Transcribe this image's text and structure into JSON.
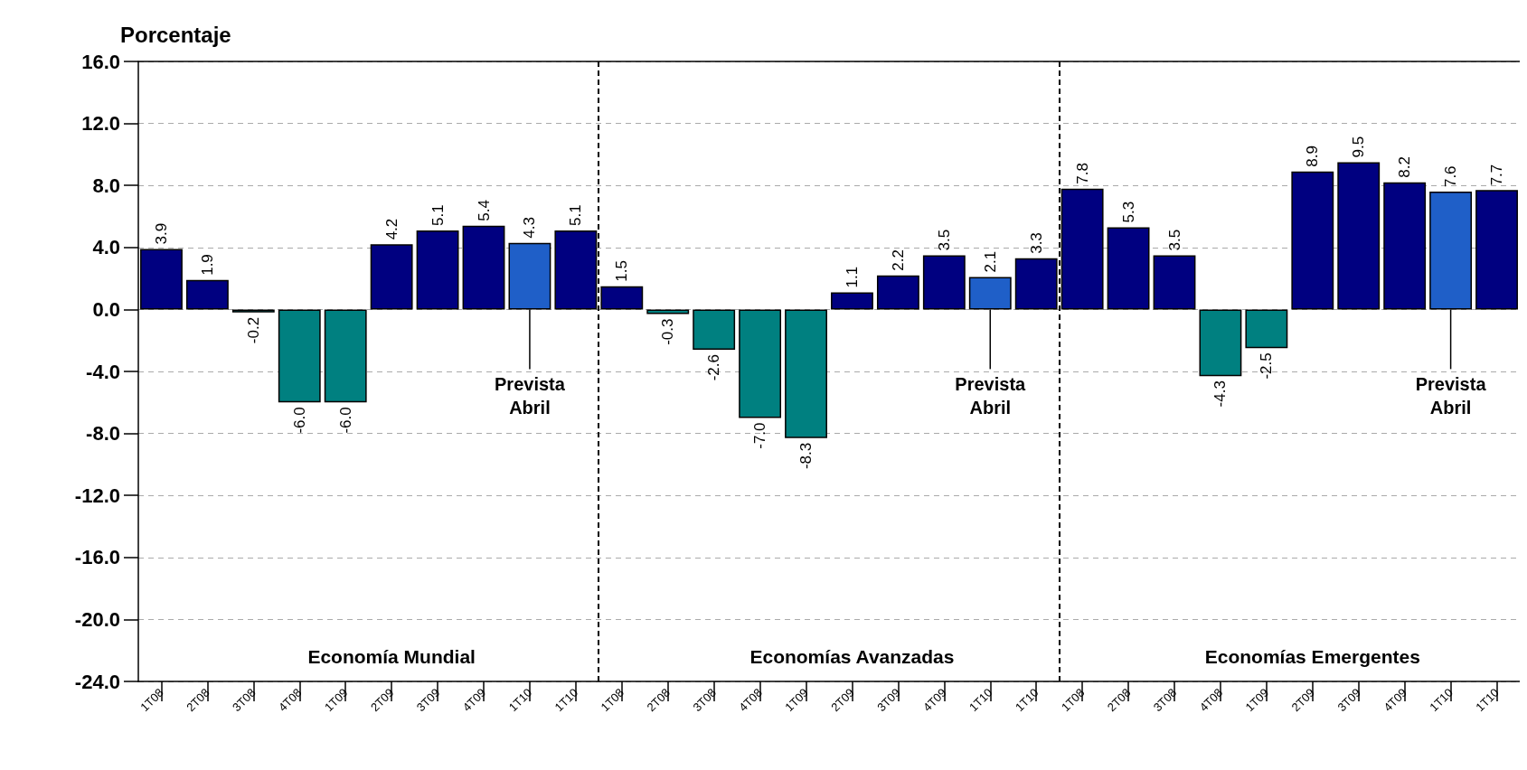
{
  "chart_data": {
    "type": "bar",
    "ylabel": "Porcentaje",
    "categories": [
      "1T08",
      "2T08",
      "3T08",
      "4T08",
      "1T09",
      "2T09",
      "3T09",
      "4T09",
      "1T10",
      "1T10",
      "1T08",
      "2T08",
      "3T08",
      "4T08",
      "1T09",
      "2T09",
      "3T09",
      "4T09",
      "1T10",
      "1T10",
      "1T08",
      "2T08",
      "3T08",
      "4T08",
      "1T09",
      "2T09",
      "3T09",
      "4T09",
      "1T10",
      "1T10"
    ],
    "values": [
      3.9,
      1.9,
      -0.2,
      -6.0,
      -6.0,
      4.2,
      5.1,
      5.4,
      4.3,
      5.1,
      1.5,
      -0.3,
      -2.6,
      -7.0,
      -8.3,
      1.1,
      2.2,
      3.5,
      2.1,
      3.3,
      7.8,
      5.3,
      3.5,
      -4.3,
      -2.5,
      8.9,
      9.5,
      8.2,
      7.6,
      7.7
    ],
    "colors": [
      "#000080",
      "#000080",
      "#008080",
      "#008080",
      "#008080",
      "#000080",
      "#000080",
      "#000080",
      "#1f5fc8",
      "#000080",
      "#000080",
      "#008080",
      "#008080",
      "#008080",
      "#008080",
      "#000080",
      "#000080",
      "#000080",
      "#1f5fc8",
      "#000080",
      "#000080",
      "#000080",
      "#000080",
      "#008080",
      "#008080",
      "#000080",
      "#000080",
      "#000080",
      "#1f5fc8",
      "#000080"
    ],
    "value_labels": [
      "3.9",
      "1.9",
      "-0.2",
      "-6.0",
      "-6.0",
      "4.2",
      "5.1",
      "5.4",
      "4.3",
      "5.1",
      "1.5",
      "-0.3",
      "-2.6",
      "-7.0",
      "-8.3",
      "1.1",
      "2.2",
      "3.5",
      "2.1",
      "3.3",
      "7.8",
      "5.3",
      "3.5",
      "-4.3",
      "-2.5",
      "8.9",
      "9.5",
      "8.2",
      "7.6",
      "7.7"
    ],
    "ylim": [
      -24,
      16
    ],
    "yticks": [
      {
        "value": -24,
        "label": "-24.0"
      },
      {
        "value": -20,
        "label": "-20.0"
      },
      {
        "value": -16,
        "label": "-16.0"
      },
      {
        "value": -12,
        "label": "-12.0"
      },
      {
        "value": -8,
        "label": "-8.0"
      },
      {
        "value": -4,
        "label": "-4.0"
      },
      {
        "value": 0,
        "label": "0.0"
      },
      {
        "value": 4,
        "label": "4.0"
      },
      {
        "value": 8,
        "label": "8.0"
      },
      {
        "value": 12,
        "label": "12.0"
      },
      {
        "value": 16,
        "label": "16.0"
      }
    ],
    "grid": "y",
    "annotations": [
      "Economía Mundial",
      "Economías Avanzadas",
      "Economías Emergentes",
      {
        "text": "Prevista\nAbril",
        "y": 0
      },
      {
        "text": "Prevista\nAbril",
        "y": 0
      },
      {
        "text": "Prevista\nAbril",
        "y": 0
      }
    ]
  }
}
